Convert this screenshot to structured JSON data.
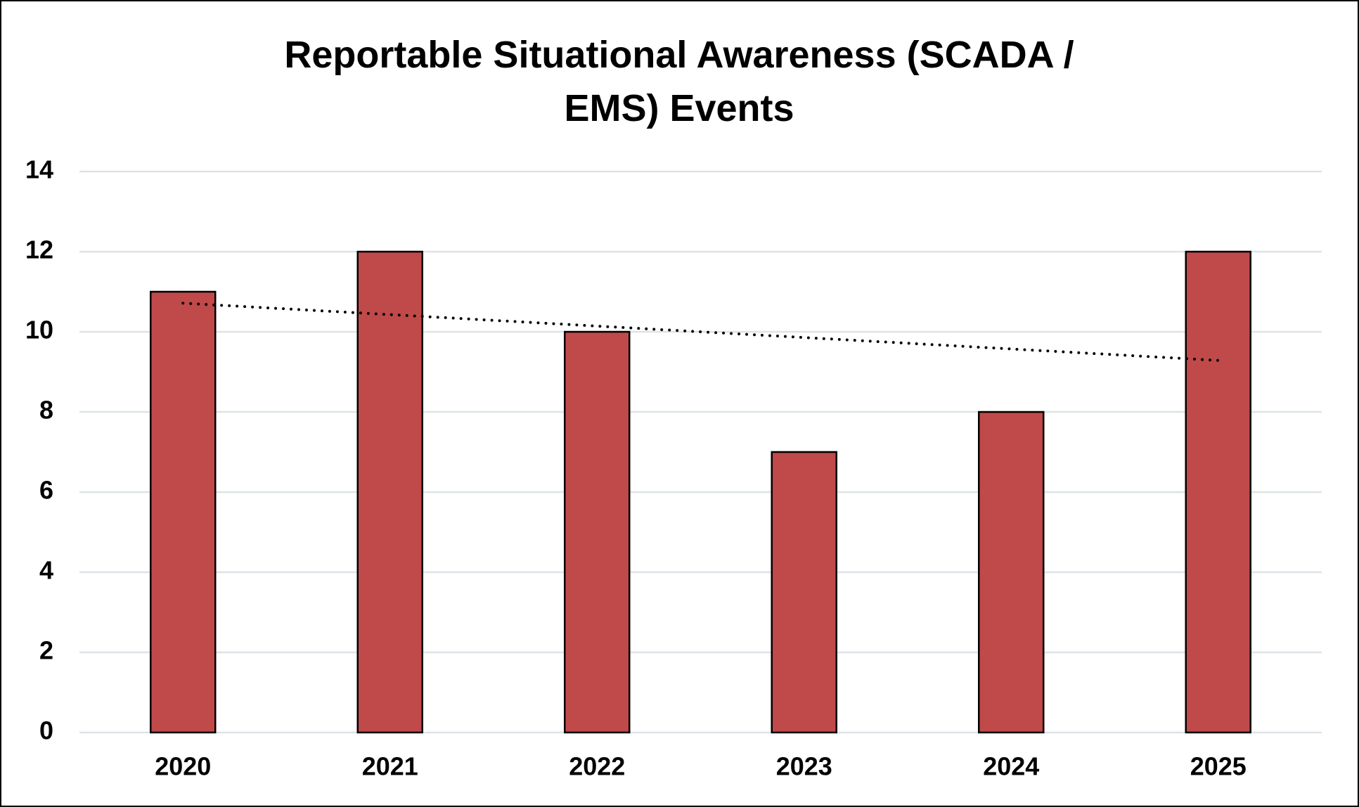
{
  "chart_data": {
    "type": "bar",
    "title": "Reportable Situational Awareness (SCADA / EMS) Events",
    "categories": [
      "2020",
      "2021",
      "2022",
      "2023",
      "2024",
      "2025"
    ],
    "values": [
      11,
      12,
      10,
      7,
      8,
      12
    ],
    "color": "#c0494a",
    "ylim": [
      0,
      14
    ],
    "yticks": [
      0,
      2,
      4,
      6,
      8,
      10,
      12,
      14
    ],
    "grid": true,
    "trendline": "linear"
  }
}
